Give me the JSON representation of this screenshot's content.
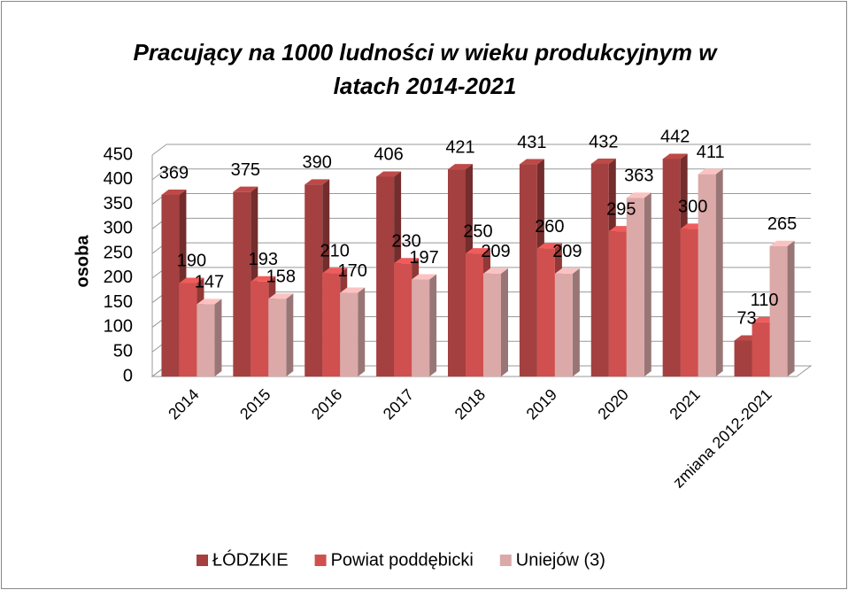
{
  "chart_data": {
    "type": "bar3d",
    "title": "Pracujący na 1000 ludności w wieku produkcyjnym w latach 2014-2021",
    "y_label": "osoba",
    "categories": [
      "2014",
      "2015",
      "2016",
      "2017",
      "2018",
      "2019",
      "2020",
      "2021",
      "zmiana 2012-2021"
    ],
    "series": [
      {
        "name": "ŁÓDZKIE",
        "color": "#a4403f",
        "values": [
          369,
          375,
          390,
          406,
          421,
          431,
          432,
          442,
          73
        ]
      },
      {
        "name": "Powiat poddębicki",
        "color": "#d0504f",
        "values": [
          190,
          193,
          210,
          230,
          250,
          260,
          295,
          300,
          110
        ]
      },
      {
        "name": "Uniejów (3)",
        "color": "#dba9a8",
        "values": [
          147,
          158,
          170,
          197,
          209,
          209,
          363,
          411,
          265
        ]
      }
    ],
    "ylim": [
      0,
      450
    ],
    "yticks": [
      0,
      50,
      100,
      150,
      200,
      250,
      300,
      350,
      400,
      450
    ],
    "grid": true,
    "legend": "bottom"
  }
}
